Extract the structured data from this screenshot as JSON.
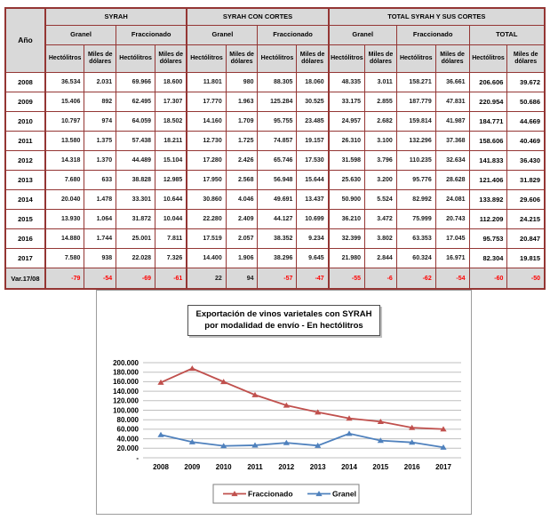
{
  "table": {
    "corner_label": "Año",
    "groups": [
      {
        "label": "SYRAH",
        "sub": [
          "Granel",
          "Fraccionado"
        ]
      },
      {
        "label": "SYRAH CON CORTES",
        "sub": [
          "Granel",
          "Fraccionado"
        ]
      },
      {
        "label": "TOTAL SYRAH Y SUS CORTES",
        "sub": [
          "Granel",
          "Fraccionado",
          "TOTAL"
        ]
      }
    ],
    "unit_headers": [
      "Hectólitros",
      "Miles de dólares"
    ],
    "rows": [
      {
        "year": "2008",
        "values": [
          "36.534",
          "2.031",
          "69.966",
          "18.600",
          "11.801",
          "980",
          "88.305",
          "18.060",
          "48.335",
          "3.011",
          "158.271",
          "36.661",
          "206.606",
          "39.672"
        ]
      },
      {
        "year": "2009",
        "values": [
          "15.406",
          "892",
          "62.495",
          "17.307",
          "17.770",
          "1.963",
          "125.284",
          "30.525",
          "33.175",
          "2.855",
          "187.779",
          "47.831",
          "220.954",
          "50.686"
        ]
      },
      {
        "year": "2010",
        "values": [
          "10.797",
          "974",
          "64.059",
          "18.502",
          "14.160",
          "1.709",
          "95.755",
          "23.485",
          "24.957",
          "2.682",
          "159.814",
          "41.987",
          "184.771",
          "44.669"
        ]
      },
      {
        "year": "2011",
        "values": [
          "13.580",
          "1.375",
          "57.438",
          "18.211",
          "12.730",
          "1.725",
          "74.857",
          "19.157",
          "26.310",
          "3.100",
          "132.296",
          "37.368",
          "158.606",
          "40.469"
        ]
      },
      {
        "year": "2012",
        "values": [
          "14.318",
          "1.370",
          "44.489",
          "15.104",
          "17.280",
          "2.426",
          "65.746",
          "17.530",
          "31.598",
          "3.796",
          "110.235",
          "32.634",
          "141.833",
          "36.430"
        ]
      },
      {
        "year": "2013",
        "values": [
          "7.680",
          "633",
          "38.828",
          "12.985",
          "17.950",
          "2.568",
          "56.948",
          "15.644",
          "25.630",
          "3.200",
          "95.776",
          "28.628",
          "121.406",
          "31.829"
        ]
      },
      {
        "year": "2014",
        "values": [
          "20.040",
          "1.478",
          "33.301",
          "10.644",
          "30.860",
          "4.046",
          "49.691",
          "13.437",
          "50.900",
          "5.524",
          "82.992",
          "24.081",
          "133.892",
          "29.606"
        ]
      },
      {
        "year": "2015",
        "values": [
          "13.930",
          "1.064",
          "31.872",
          "10.044",
          "22.280",
          "2.409",
          "44.127",
          "10.699",
          "36.210",
          "3.472",
          "75.999",
          "20.743",
          "112.209",
          "24.215"
        ]
      },
      {
        "year": "2016",
        "values": [
          "14.880",
          "1.744",
          "25.001",
          "7.811",
          "17.519",
          "2.057",
          "38.352",
          "9.234",
          "32.399",
          "3.802",
          "63.353",
          "17.045",
          "95.753",
          "20.847"
        ]
      },
      {
        "year": "2017",
        "values": [
          "7.580",
          "938",
          "22.028",
          "7.326",
          "14.400",
          "1.906",
          "38.296",
          "9.645",
          "21.980",
          "2.844",
          "60.324",
          "16.971",
          "82.304",
          "19.815"
        ]
      }
    ],
    "var_row": {
      "label": "Var.17/08",
      "values": [
        "-79",
        "-54",
        "-69",
        "-61",
        "22",
        "94",
        "-57",
        "-47",
        "-55",
        "-6",
        "-62",
        "-54",
        "-60",
        "-50"
      ]
    }
  },
  "chart_data": {
    "type": "line",
    "title_lines": [
      "Exportación de vinos varietales con SYRAH",
      "por modalidad de envío - En hectólitros"
    ],
    "x": [
      "2008",
      "2009",
      "2010",
      "2011",
      "2012",
      "2013",
      "2014",
      "2015",
      "2016",
      "2017"
    ],
    "series": [
      {
        "name": "Fraccionado",
        "color": "#C0504D",
        "values": [
          158271,
          187779,
          159814,
          132296,
          110235,
          95776,
          82992,
          75999,
          63353,
          60324
        ]
      },
      {
        "name": "Granel",
        "color": "#4F81BD",
        "values": [
          48335,
          33175,
          24957,
          26310,
          31598,
          25630,
          50900,
          36210,
          32399,
          21980
        ]
      }
    ],
    "xlabel": "",
    "ylabel": "",
    "ylim": [
      0,
      200000
    ],
    "ytick_step": 20000,
    "ytick_labels": [
      "-",
      "20.000",
      "40.000",
      "60.000",
      "80.000",
      "100.000",
      "120.000",
      "140.000",
      "160.000",
      "180.000",
      "200.000"
    ],
    "grid": true,
    "legend_position": "bottom"
  },
  "colors": {
    "table_border": "#943634",
    "header_bg": "#D9D9D9",
    "negative_text": "#FF0000",
    "gridline": "#BFBFBF",
    "series_fraccionado": "#C0504D",
    "series_granel": "#4F81BD"
  }
}
